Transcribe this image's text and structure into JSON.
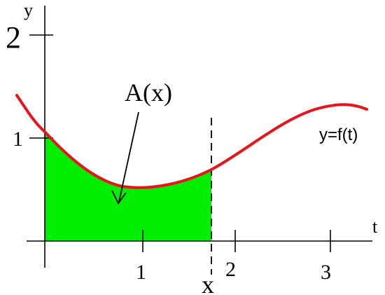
{
  "figure": {
    "axis_label_y": "y",
    "axis_label_t": "t",
    "y_tick_labels": [
      "1",
      "2"
    ],
    "t_tick_labels": [
      "1",
      "2",
      "3"
    ],
    "area_label": "A(x)",
    "variable_label": "x",
    "curve_label": "y=f(t)",
    "colors": {
      "curve": "#e8141c",
      "area_fill": "#00ee00",
      "axes": "#000000",
      "dashed_line": "#000000",
      "arrow": "#000000"
    }
  }
}
